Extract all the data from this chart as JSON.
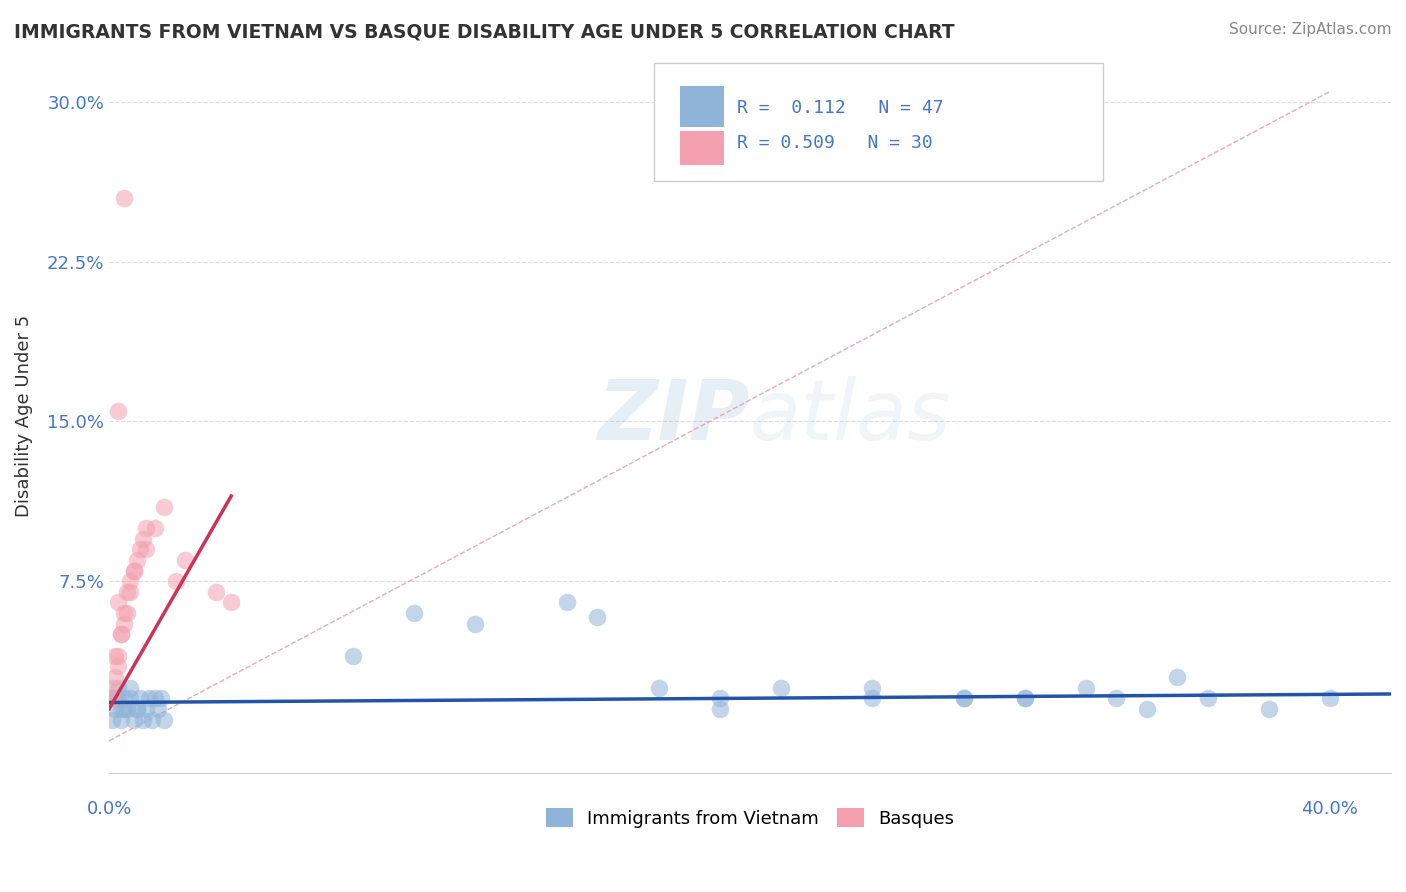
{
  "title": "IMMIGRANTS FROM VIETNAM VS BASQUE DISABILITY AGE UNDER 5 CORRELATION CHART",
  "source": "Source: ZipAtlas.com",
  "ylabel": "Disability Age Under 5",
  "xlim": [
    0.0,
    0.42
  ],
  "ylim": [
    -0.015,
    0.32
  ],
  "ytick_vals": [
    0.0,
    0.075,
    0.15,
    0.225,
    0.3
  ],
  "ytick_labels": [
    "",
    "7.5%",
    "15.0%",
    "22.5%",
    "30.0%"
  ],
  "blue_color": "#90B4D8",
  "pink_color": "#F4A0B0",
  "blue_line_color": "#2255AA",
  "pink_line_color": "#CC3355",
  "dashed_line_color": "#E8A0B0",
  "background_color": "#FFFFFF",
  "tick_color": "#4477CC",
  "title_color": "#333333",
  "source_color": "#888888",
  "watermark_color": "#C8DDEF",
  "legend_border_color": "#CCCCCC",
  "grid_color": "#DDDDDD",
  "vietnam_scatter_x": [
    0.001,
    0.002,
    0.003,
    0.004,
    0.005,
    0.006,
    0.007,
    0.008,
    0.009,
    0.01,
    0.011,
    0.012,
    0.013,
    0.014,
    0.015,
    0.016,
    0.017,
    0.018,
    0.003,
    0.005,
    0.007,
    0.009,
    0.002,
    0.004,
    0.001,
    0.08,
    0.1,
    0.12,
    0.15,
    0.16,
    0.18,
    0.2,
    0.22,
    0.25,
    0.28,
    0.3,
    0.32,
    0.34,
    0.36,
    0.38,
    0.4,
    0.35,
    0.3,
    0.25,
    0.2,
    0.28,
    0.33
  ],
  "vietnam_scatter_y": [
    0.01,
    0.015,
    0.02,
    0.01,
    0.02,
    0.015,
    0.02,
    0.01,
    0.015,
    0.02,
    0.01,
    0.015,
    0.02,
    0.01,
    0.02,
    0.015,
    0.02,
    0.01,
    0.025,
    0.015,
    0.025,
    0.015,
    0.02,
    0.015,
    0.02,
    0.04,
    0.06,
    0.055,
    0.065,
    0.058,
    0.025,
    0.02,
    0.025,
    0.025,
    0.02,
    0.02,
    0.025,
    0.015,
    0.02,
    0.015,
    0.02,
    0.03,
    0.02,
    0.02,
    0.015,
    0.02,
    0.02
  ],
  "basque_scatter_x": [
    0.001,
    0.002,
    0.003,
    0.004,
    0.005,
    0.006,
    0.007,
    0.008,
    0.009,
    0.01,
    0.011,
    0.012,
    0.002,
    0.004,
    0.006,
    0.003,
    0.005,
    0.007,
    0.001,
    0.003,
    0.008,
    0.012,
    0.015,
    0.018,
    0.022,
    0.025,
    0.035,
    0.04,
    0.005,
    0.003
  ],
  "basque_scatter_y": [
    0.02,
    0.03,
    0.04,
    0.05,
    0.06,
    0.07,
    0.075,
    0.08,
    0.085,
    0.09,
    0.095,
    0.1,
    0.04,
    0.05,
    0.06,
    0.065,
    0.055,
    0.07,
    0.025,
    0.035,
    0.08,
    0.09,
    0.1,
    0.11,
    0.075,
    0.085,
    0.07,
    0.065,
    0.255,
    0.155
  ],
  "blue_trend_x": [
    0.0,
    0.42
  ],
  "blue_trend_y": [
    0.018,
    0.022
  ],
  "pink_trend_x": [
    0.0,
    0.04
  ],
  "pink_trend_y": [
    0.015,
    0.115
  ],
  "dashed_line_x": [
    0.0,
    0.4
  ],
  "dashed_line_y": [
    0.0,
    0.305
  ]
}
